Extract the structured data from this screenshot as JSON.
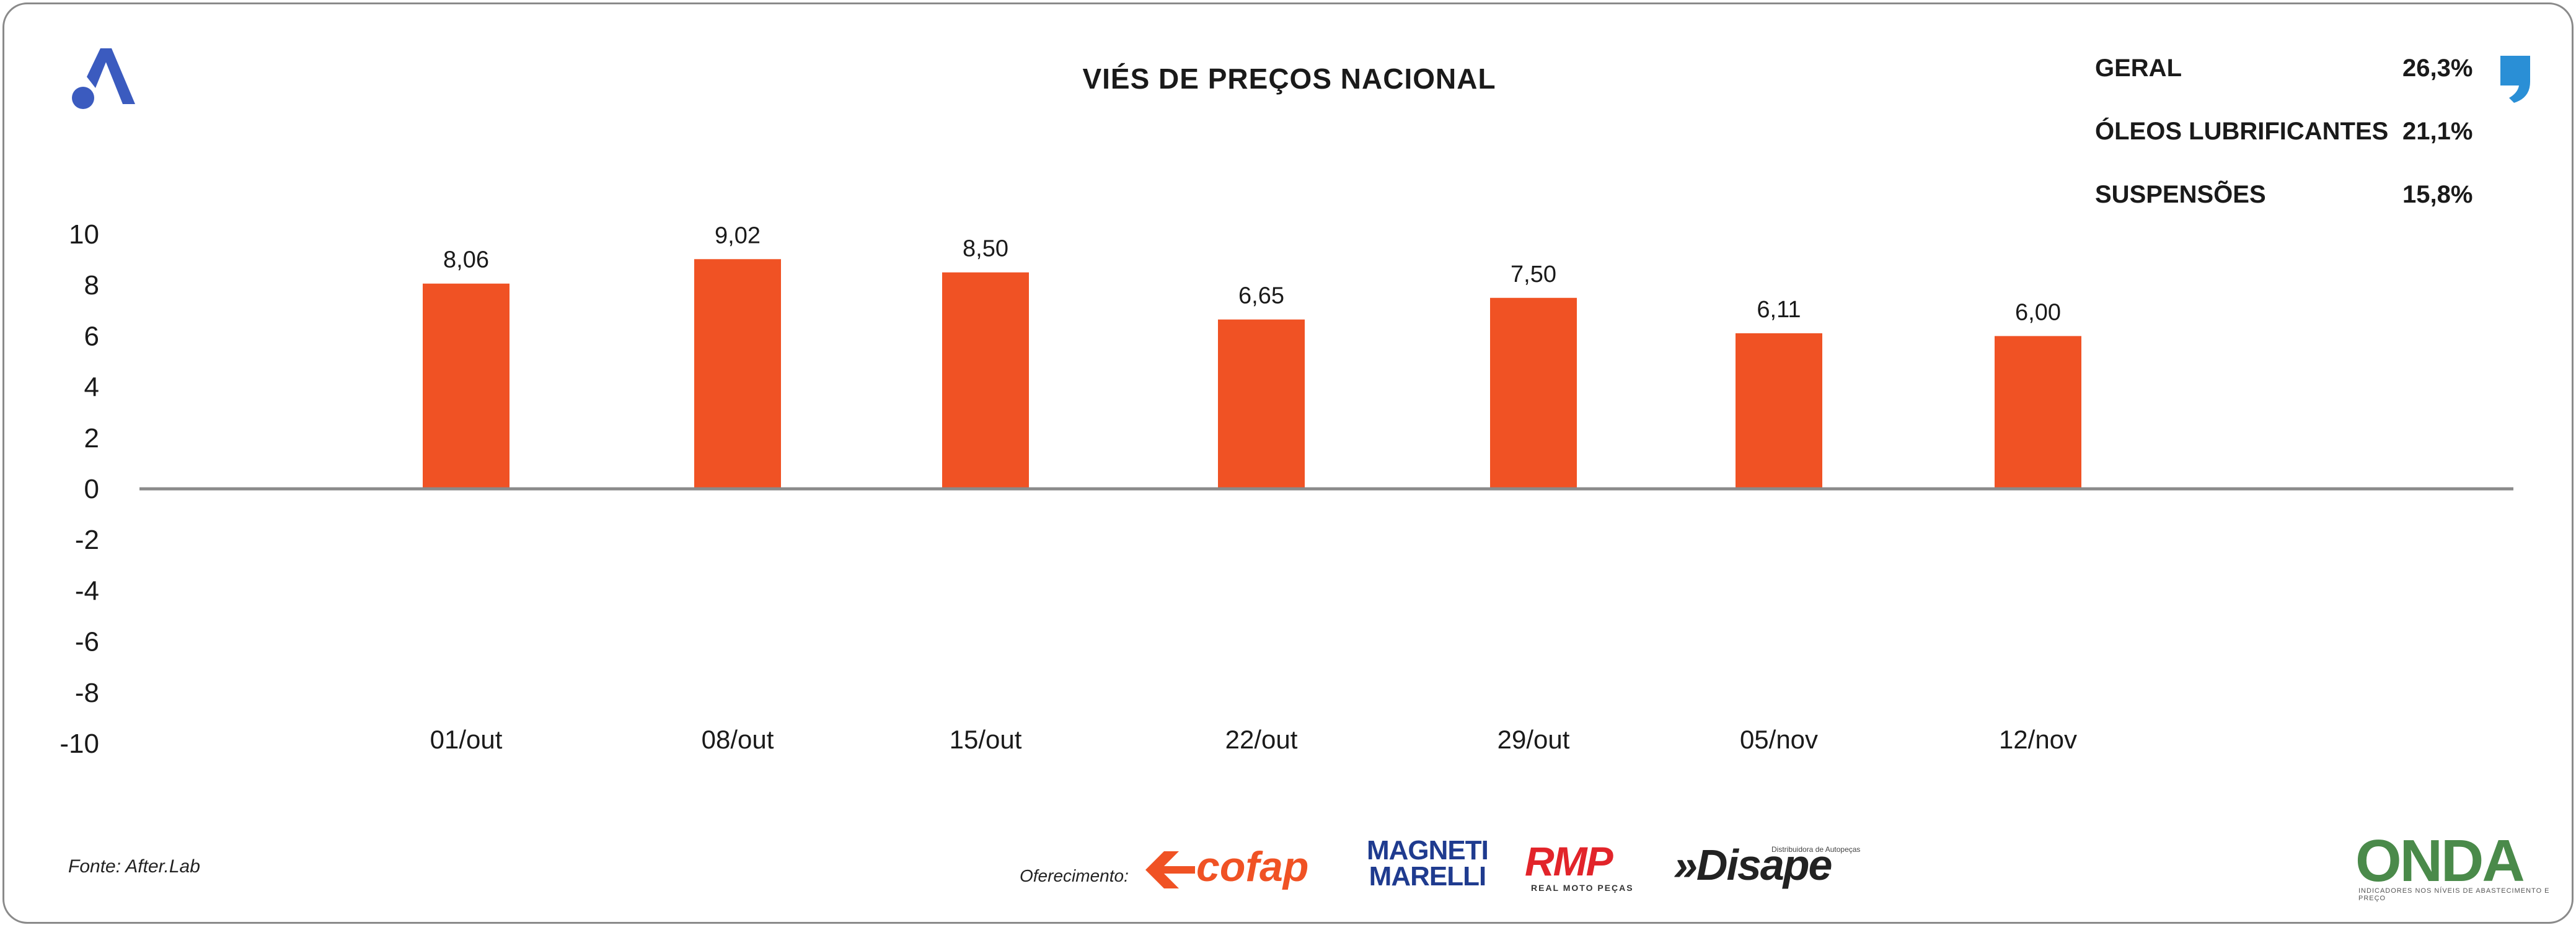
{
  "header": {
    "title": "VIÉS DE PREÇOS NACIONAL"
  },
  "stats": [
    {
      "label": "GERAL",
      "value": "26,3%"
    },
    {
      "label": "ÓLEOS LUBRIFICANTES",
      "value": "21,1%"
    },
    {
      "label": "SUSPENSÕES",
      "value": "15,8%"
    }
  ],
  "chart_data": {
    "type": "bar",
    "categories": [
      "01/out",
      "08/out",
      "15/out",
      "22/out",
      "29/out",
      "05/nov",
      "12/nov"
    ],
    "values": [
      8.06,
      9.02,
      8.5,
      6.65,
      7.5,
      6.11,
      6.0
    ],
    "value_labels": [
      "8,06",
      "9,02",
      "8,50",
      "6,65",
      "7,50",
      "6,11",
      "6,00"
    ],
    "yticks": [
      10,
      8,
      6,
      4,
      2,
      0,
      -2,
      -4,
      -6,
      -8,
      -10
    ],
    "ylim": [
      -10,
      10
    ],
    "grid": false,
    "bar_color": "#f05224",
    "axis_color": "#8a8a8a"
  },
  "footer": {
    "source": "Fonte: After.Lab",
    "sponsor_label": "Oferecimento:",
    "sponsors": {
      "cofap": "cofap",
      "magneti": "MAGNETI\nMARELLI",
      "rmp": "RMP",
      "rmp_sub": "REAL MOTO PEÇAS",
      "disape": "»Disape",
      "disape_sub": "Distribuidora de Autopeças",
      "onda": "ONDA",
      "onda_sub": "INDICADORES NOS NÍVEIS DE ABASTECIMENTO E PREÇO"
    }
  },
  "colors": {
    "accent": "#f05224",
    "logo_blue": "#3b5bbf",
    "quote_blue": "#2a8fd6"
  },
  "icons": {
    "brand_logo": "logo-a-icon",
    "quote": "quote-mark-icon"
  }
}
